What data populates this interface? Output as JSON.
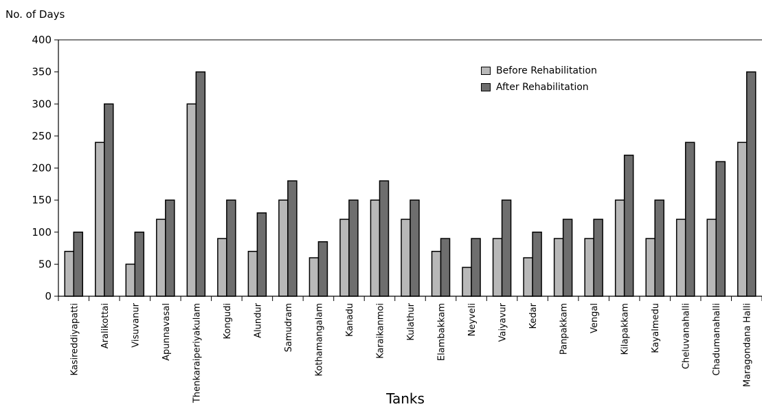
{
  "chart_data": {
    "type": "bar",
    "ylabel": "No. of Days",
    "xlabel": "Tanks",
    "ylim": [
      0,
      400
    ],
    "yticks": [
      0,
      50,
      100,
      150,
      200,
      250,
      300,
      350,
      400
    ],
    "grid": false,
    "legend_position": "top-right",
    "categories": [
      "Kasireddiyapatti",
      "Aralikottai",
      "Visuvanur",
      "Apunnavasal",
      "Thenkaraiperiyakulam",
      "Kongudi",
      "Alundur",
      "Samudram",
      "Kothamangalam",
      "Kanadu",
      "Karaikanmoi",
      "Kulathur",
      "Elambakkam",
      "Neyveli",
      "Vaiyavur",
      "Kedar",
      "Panpakkam",
      "Vengal",
      "Kilapakkam",
      "Kayalmedu",
      "Cheluvanahalli",
      "Chadumanahalli",
      "Maragondana Halli"
    ],
    "series": [
      {
        "name": "Before Rehabilitation",
        "color": "#b8b8b8",
        "values": [
          70,
          240,
          50,
          120,
          300,
          90,
          70,
          150,
          60,
          120,
          150,
          120,
          70,
          45,
          90,
          60,
          90,
          90,
          150,
          90,
          120,
          120,
          240
        ]
      },
      {
        "name": "After Rehabilitation",
        "color": "#6e6e6e",
        "values": [
          100,
          300,
          100,
          150,
          350,
          150,
          130,
          180,
          85,
          150,
          180,
          150,
          90,
          90,
          150,
          100,
          120,
          120,
          220,
          150,
          240,
          210,
          350
        ]
      }
    ]
  }
}
